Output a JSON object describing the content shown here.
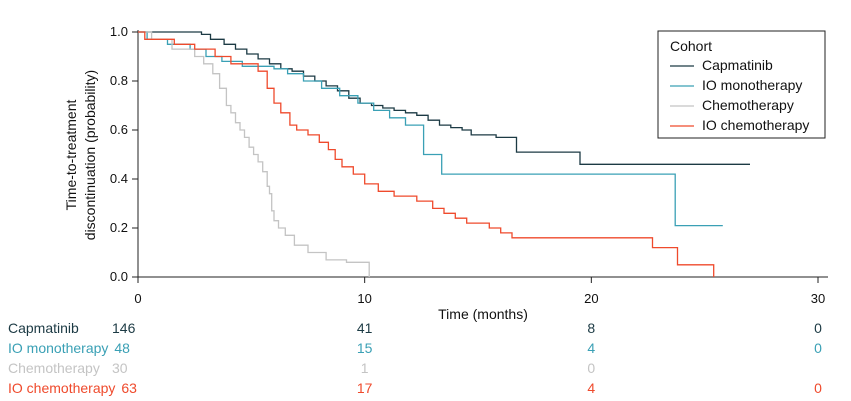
{
  "chart_data": {
    "type": "line",
    "subtype": "kaplan-meier step",
    "xlabel": "Time (months)",
    "ylabel_lines": [
      "Time-to-treatment",
      "discontinuation (probability)"
    ],
    "xlim": [
      0,
      30
    ],
    "ylim": [
      0,
      1
    ],
    "x_ticks": [
      0,
      10,
      20,
      30
    ],
    "y_ticks": [
      0.0,
      0.2,
      0.4,
      0.6,
      0.8,
      1.0
    ],
    "x_tick_labels": [
      "0",
      "10",
      "20",
      "30"
    ],
    "y_tick_labels": [
      "0.0",
      "0.2",
      "0.4",
      "0.6",
      "0.8",
      "1.0"
    ],
    "legend": {
      "title": "Cohort",
      "placement": "top-right"
    },
    "series": [
      {
        "name": "Capmatinib",
        "color": "#1c3a44",
        "steps": [
          [
            0,
            1.0
          ],
          [
            2.8,
            0.99
          ],
          [
            3.2,
            0.97
          ],
          [
            3.8,
            0.95
          ],
          [
            4.3,
            0.93
          ],
          [
            4.8,
            0.91
          ],
          [
            5.3,
            0.89
          ],
          [
            5.8,
            0.87
          ],
          [
            6.3,
            0.85
          ],
          [
            6.8,
            0.84
          ],
          [
            7.3,
            0.82
          ],
          [
            7.8,
            0.8
          ],
          [
            8.3,
            0.78
          ],
          [
            8.8,
            0.76
          ],
          [
            9.3,
            0.73
          ],
          [
            9.8,
            0.71
          ],
          [
            10.3,
            0.7
          ],
          [
            10.8,
            0.69
          ],
          [
            11.3,
            0.68
          ],
          [
            11.8,
            0.67
          ],
          [
            12.3,
            0.66
          ],
          [
            12.8,
            0.64
          ],
          [
            13.3,
            0.62
          ],
          [
            13.8,
            0.61
          ],
          [
            14.3,
            0.6
          ],
          [
            14.7,
            0.58
          ],
          [
            15.8,
            0.57
          ],
          [
            16.7,
            0.51
          ],
          [
            19.5,
            0.46
          ],
          [
            27.0,
            0.46
          ]
        ],
        "at_risk": [
          "146",
          "41",
          "8",
          "0"
        ]
      },
      {
        "name": "IO monotherapy",
        "color": "#3aa0b5",
        "steps": [
          [
            0,
            1.0
          ],
          [
            0.4,
            0.97
          ],
          [
            1.3,
            0.95
          ],
          [
            2.3,
            0.93
          ],
          [
            3.0,
            0.9
          ],
          [
            3.7,
            0.88
          ],
          [
            4.6,
            0.86
          ],
          [
            6.0,
            0.85
          ],
          [
            6.6,
            0.83
          ],
          [
            7.3,
            0.8
          ],
          [
            8.1,
            0.77
          ],
          [
            8.9,
            0.74
          ],
          [
            9.7,
            0.71
          ],
          [
            10.4,
            0.68
          ],
          [
            11.1,
            0.65
          ],
          [
            11.8,
            0.62
          ],
          [
            12.6,
            0.5
          ],
          [
            13.4,
            0.42
          ],
          [
            23.5,
            0.42
          ],
          [
            23.7,
            0.21
          ],
          [
            25.8,
            0.21
          ]
        ],
        "at_risk": [
          "48",
          "15",
          "4",
          "0"
        ]
      },
      {
        "name": "Chemotherapy",
        "color": "#c4c4c4",
        "steps": [
          [
            0,
            1.0
          ],
          [
            0.6,
            0.97
          ],
          [
            1.5,
            0.93
          ],
          [
            2.5,
            0.9
          ],
          [
            2.9,
            0.87
          ],
          [
            3.3,
            0.83
          ],
          [
            3.6,
            0.77
          ],
          [
            3.9,
            0.7
          ],
          [
            4.1,
            0.67
          ],
          [
            4.3,
            0.63
          ],
          [
            4.5,
            0.6
          ],
          [
            4.7,
            0.57
          ],
          [
            4.9,
            0.53
          ],
          [
            5.1,
            0.5
          ],
          [
            5.3,
            0.47
          ],
          [
            5.5,
            0.43
          ],
          [
            5.7,
            0.37
          ],
          [
            5.8,
            0.34
          ],
          [
            5.9,
            0.27
          ],
          [
            6.0,
            0.23
          ],
          [
            6.2,
            0.2
          ],
          [
            6.5,
            0.17
          ],
          [
            6.9,
            0.13
          ],
          [
            7.5,
            0.1
          ],
          [
            8.3,
            0.07
          ],
          [
            9.2,
            0.06
          ],
          [
            10.2,
            0.0
          ]
        ],
        "at_risk": [
          "30",
          "1",
          "0",
          ""
        ]
      },
      {
        "name": "IO chemotherapy",
        "color": "#ef4a2c",
        "steps": [
          [
            0,
            1.0
          ],
          [
            0.3,
            0.97
          ],
          [
            1.6,
            0.95
          ],
          [
            2.5,
            0.93
          ],
          [
            3.4,
            0.9
          ],
          [
            4.1,
            0.87
          ],
          [
            5.3,
            0.84
          ],
          [
            5.7,
            0.77
          ],
          [
            6.0,
            0.71
          ],
          [
            6.3,
            0.67
          ],
          [
            6.7,
            0.62
          ],
          [
            7.0,
            0.6
          ],
          [
            7.5,
            0.58
          ],
          [
            8.0,
            0.55
          ],
          [
            8.4,
            0.52
          ],
          [
            8.7,
            0.48
          ],
          [
            9.0,
            0.45
          ],
          [
            9.5,
            0.42
          ],
          [
            10.0,
            0.38
          ],
          [
            10.6,
            0.35
          ],
          [
            11.3,
            0.33
          ],
          [
            11.9,
            0.33
          ],
          [
            12.3,
            0.31
          ],
          [
            13.0,
            0.28
          ],
          [
            13.5,
            0.26
          ],
          [
            14.0,
            0.24
          ],
          [
            14.5,
            0.22
          ],
          [
            15.5,
            0.2
          ],
          [
            16.0,
            0.18
          ],
          [
            16.5,
            0.16
          ],
          [
            22.6,
            0.16
          ],
          [
            22.7,
            0.12
          ],
          [
            23.6,
            0.12
          ],
          [
            23.8,
            0.05
          ],
          [
            25.3,
            0.05
          ],
          [
            25.4,
            0.0
          ]
        ],
        "at_risk": [
          "63",
          "17",
          "4",
          "0"
        ]
      }
    ]
  }
}
